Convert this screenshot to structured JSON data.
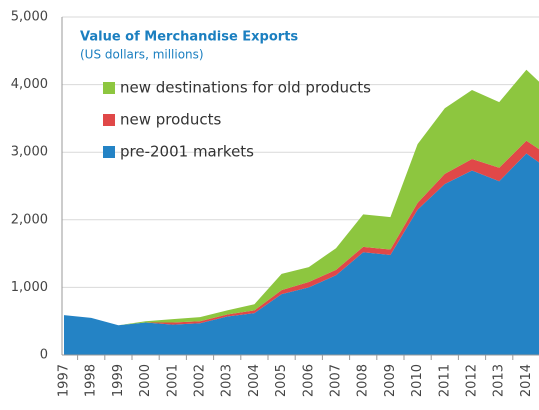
{
  "chart_data": {
    "type": "stacked-area",
    "title": "Value of Merchandise Exports",
    "subtitle": "(US dollars, millions)",
    "categories": [
      "1997",
      "1998",
      "1999",
      "2000",
      "2001",
      "2002",
      "2003",
      "2004",
      "2005",
      "2006",
      "2007",
      "2008",
      "2009",
      "2010",
      "2011",
      "2012",
      "2013",
      "2014",
      null
    ],
    "series": [
      {
        "name": "pre-2001 markets",
        "color": "#2483c5",
        "values": [
          590,
          550,
          440,
          480,
          450,
          470,
          570,
          620,
          900,
          1000,
          1180,
          1520,
          1480,
          2150,
          2530,
          2730,
          2570,
          2980,
          2700
        ]
      },
      {
        "name": "new products",
        "color": "#e04848",
        "values": [
          0,
          0,
          0,
          0,
          30,
          30,
          30,
          40,
          60,
          80,
          80,
          80,
          80,
          100,
          150,
          170,
          200,
          190,
          200
        ]
      },
      {
        "name": "new destinations for old products",
        "color": "#8dc63f",
        "values": [
          0,
          0,
          0,
          20,
          50,
          60,
          60,
          90,
          240,
          220,
          320,
          480,
          480,
          870,
          970,
          1020,
          970,
          1050,
          940
        ]
      }
    ],
    "ylim": [
      0,
      5000
    ],
    "yticks": [
      0,
      {
        "value": 1000,
        "label": "1,000"
      },
      {
        "value": 2000,
        "label": "2,000"
      },
      {
        "value": 3000,
        "label": "3,000"
      },
      {
        "value": 4000,
        "label": "4,000"
      },
      {
        "value": 5000,
        "label": "5,000"
      }
    ],
    "grid": true
  }
}
